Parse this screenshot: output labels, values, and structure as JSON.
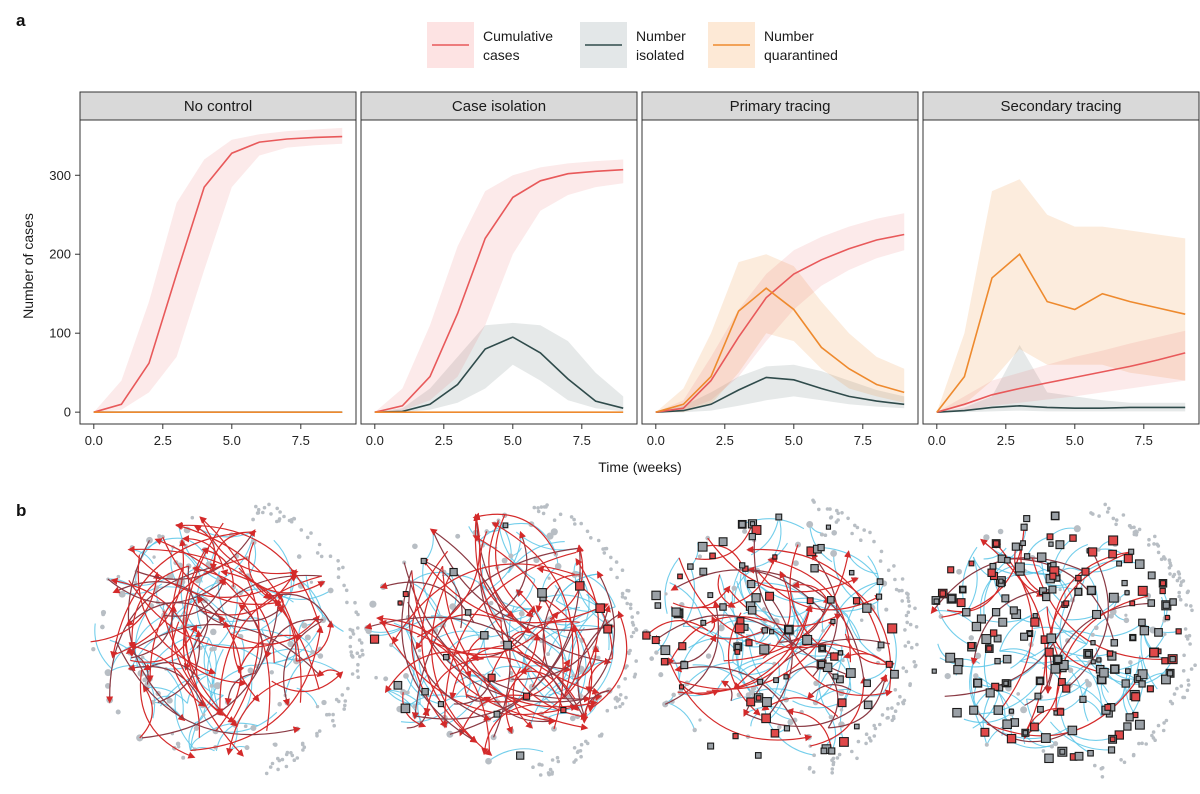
{
  "panel_labels": {
    "a": "a",
    "b": "b"
  },
  "colors": {
    "cumulative": "#e8595a",
    "isolated": "#2f4b4b",
    "quarantined": "#ee8a2e",
    "network_edge": "#5bc6e8",
    "network_transmission": "#d42a2a",
    "network_node": "#b8bec4"
  },
  "legend": [
    {
      "key": "cumulative",
      "line1": "Cumulative",
      "line2": "cases"
    },
    {
      "key": "isolated",
      "line1": "Number",
      "line2": "isolated"
    },
    {
      "key": "quarantined",
      "line1": "Number",
      "line2": "quarantined"
    }
  ],
  "chart_data": {
    "type": "line",
    "facets": [
      "No control",
      "Case isolation",
      "Primary tracing",
      "Secondary tracing"
    ],
    "xlabel": "Time (weeks)",
    "ylabel": "Number of cases",
    "xlim": [
      -0.5,
      9.5
    ],
    "ylim": [
      -15,
      370
    ],
    "xticks": [
      0.0,
      2.5,
      5.0,
      7.5
    ],
    "xtick_labels": [
      "0.0",
      "2.5",
      "5.0",
      "7.5"
    ],
    "yticks": [
      0,
      100,
      200,
      300
    ],
    "ytick_labels": [
      "0",
      "100",
      "200",
      "300"
    ],
    "x": [
      0,
      1,
      2,
      3,
      4,
      5,
      6,
      7,
      8,
      9
    ],
    "panels": [
      {
        "cumulative": {
          "mean": [
            0,
            10,
            62,
            175,
            285,
            328,
            342,
            346,
            348,
            349
          ],
          "lower": [
            0,
            3,
            25,
            70,
            180,
            285,
            325,
            335,
            338,
            340
          ],
          "upper": [
            0,
            40,
            140,
            265,
            320,
            345,
            352,
            356,
            358,
            360
          ]
        },
        "isolated": {
          "mean": [
            0,
            0,
            0,
            0,
            0,
            0,
            0,
            0,
            0,
            0
          ],
          "lower": null,
          "upper": null
        },
        "quarantined": {
          "mean": [
            0,
            0,
            0,
            0,
            0,
            0,
            0,
            0,
            0,
            0
          ],
          "lower": null,
          "upper": null
        }
      },
      {
        "cumulative": {
          "mean": [
            0,
            8,
            45,
            125,
            220,
            272,
            293,
            302,
            305,
            307
          ],
          "lower": [
            0,
            2,
            15,
            45,
            110,
            200,
            255,
            275,
            285,
            290
          ],
          "upper": [
            0,
            30,
            110,
            210,
            280,
            300,
            310,
            315,
            318,
            320
          ]
        },
        "isolated": {
          "mean": [
            0,
            1,
            10,
            35,
            80,
            95,
            75,
            42,
            14,
            5
          ],
          "lower": [
            0,
            0,
            3,
            12,
            30,
            60,
            40,
            15,
            5,
            1
          ],
          "upper": [
            0,
            5,
            30,
            70,
            110,
            113,
            110,
            90,
            50,
            20
          ]
        },
        "quarantined": {
          "mean": [
            0,
            0,
            0,
            0,
            0,
            0,
            0,
            0,
            0,
            0
          ],
          "lower": null,
          "upper": null
        }
      },
      {
        "cumulative": {
          "mean": [
            0,
            5,
            40,
            95,
            145,
            175,
            193,
            207,
            218,
            225
          ],
          "lower": [
            0,
            2,
            15,
            45,
            90,
            130,
            160,
            180,
            195,
            205
          ],
          "upper": [
            0,
            15,
            70,
            130,
            175,
            205,
            222,
            235,
            245,
            252
          ]
        },
        "isolated": {
          "mean": [
            0,
            2,
            10,
            28,
            44,
            41,
            30,
            20,
            14,
            10
          ],
          "lower": [
            0,
            0,
            2,
            8,
            15,
            20,
            15,
            10,
            7,
            5
          ],
          "upper": [
            0,
            8,
            25,
            45,
            58,
            60,
            52,
            40,
            28,
            20
          ]
        },
        "quarantined": {
          "mean": [
            0,
            10,
            45,
            128,
            157,
            130,
            82,
            55,
            35,
            25
          ],
          "lower": [
            0,
            0,
            10,
            50,
            100,
            90,
            55,
            30,
            20,
            12
          ],
          "upper": [
            0,
            30,
            100,
            190,
            200,
            185,
            140,
            100,
            70,
            55
          ]
        }
      },
      {
        "cumulative": {
          "mean": [
            0,
            10,
            22,
            30,
            37,
            44,
            51,
            58,
            66,
            75
          ],
          "lower": [
            0,
            2,
            8,
            12,
            16,
            20,
            25,
            30,
            35,
            40
          ],
          "upper": [
            0,
            20,
            40,
            50,
            60,
            70,
            78,
            87,
            95,
            103
          ]
        },
        "isolated": {
          "mean": [
            0,
            2,
            6,
            8,
            6,
            5,
            5,
            6,
            6,
            6
          ],
          "lower": [
            0,
            0,
            1,
            2,
            1,
            1,
            1,
            1,
            1,
            1
          ],
          "upper": [
            0,
            6,
            20,
            85,
            25,
            20,
            15,
            12,
            12,
            12
          ]
        },
        "quarantined": {
          "mean": [
            0,
            45,
            170,
            200,
            140,
            130,
            150,
            140,
            132,
            124
          ],
          "lower": [
            0,
            10,
            40,
            80,
            60,
            60,
            60,
            50,
            45,
            40
          ],
          "upper": [
            0,
            100,
            280,
            295,
            250,
            235,
            235,
            230,
            225,
            220
          ]
        }
      }
    ],
    "legend_position": "top"
  }
}
